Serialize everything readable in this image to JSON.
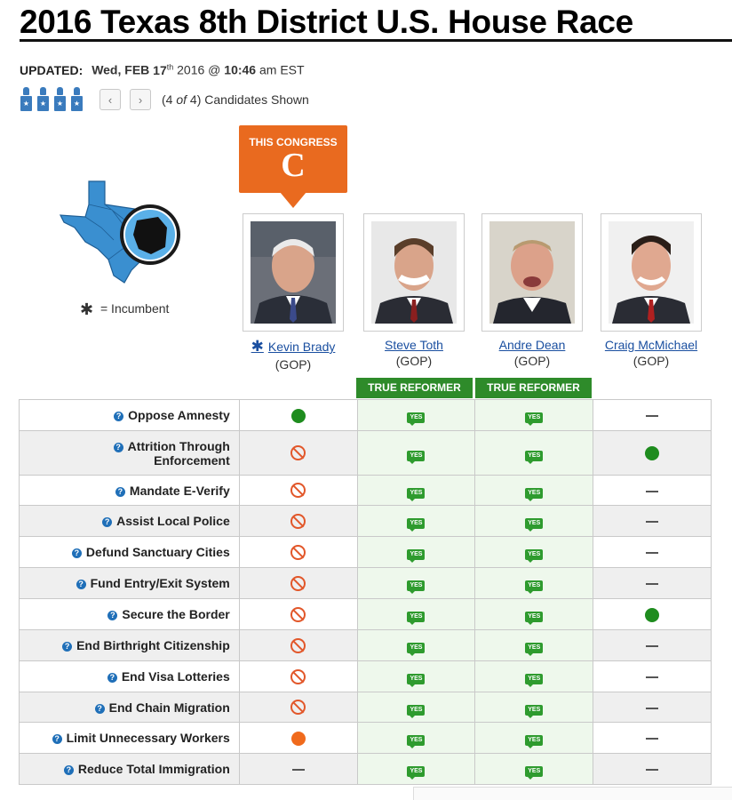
{
  "title": "2016 Texas 8th District U.S. House Race",
  "updated": {
    "label": "UPDATED:",
    "day": "Wed, FEB",
    "date_num": "17",
    "date_sup": "th",
    "year": "2016 @",
    "time": "10:46",
    "ampm": "am EST"
  },
  "nav": {
    "prev": "‹",
    "next": "›",
    "shown_open": "(4",
    "shown_of": "of",
    "shown_close": "4) Candidates Shown"
  },
  "congress": {
    "label": "THIS CONGRESS",
    "grade": "C"
  },
  "legend": {
    "symbol": "✱",
    "text": "= Incumbent"
  },
  "candidates": [
    {
      "name": "Kevin Brady",
      "party": "(GOP)",
      "incumbent": true,
      "badge": ""
    },
    {
      "name": "Steve Toth",
      "party": "(GOP)",
      "incumbent": false,
      "badge": "TRUE REFORMER"
    },
    {
      "name": "Andre Dean",
      "party": "(GOP)",
      "incumbent": false,
      "badge": "TRUE REFORMER"
    },
    {
      "name": "Craig McMichael",
      "party": "(GOP)",
      "incumbent": false,
      "badge": ""
    }
  ],
  "yes_label": "YES",
  "issues": [
    {
      "l1": "Oppose Amnesty",
      "l2": "",
      "v": [
        "green",
        "yes",
        "yes",
        "dash"
      ]
    },
    {
      "l1": "Attrition Through",
      "l2": "Enforcement",
      "v": [
        "no",
        "yes",
        "yes",
        "green"
      ]
    },
    {
      "l1": "Mandate E-Verify",
      "l2": "",
      "v": [
        "no",
        "yes",
        "yes",
        "dash"
      ]
    },
    {
      "l1": "Assist Local Police",
      "l2": "",
      "v": [
        "no",
        "yes",
        "yes",
        "dash"
      ]
    },
    {
      "l1": "Defund Sanctuary Cities",
      "l2": "",
      "v": [
        "no",
        "yes",
        "yes",
        "dash"
      ]
    },
    {
      "l1": "Fund Entry/Exit System",
      "l2": "",
      "v": [
        "no",
        "yes",
        "yes",
        "dash"
      ]
    },
    {
      "l1": "Secure the Border",
      "l2": "",
      "v": [
        "no",
        "yes",
        "yes",
        "green"
      ]
    },
    {
      "l1": "End Birthright Citizenship",
      "l2": "",
      "v": [
        "no",
        "yes",
        "yes",
        "dash"
      ]
    },
    {
      "l1": "End Visa Lotteries",
      "l2": "",
      "v": [
        "no",
        "yes",
        "yes",
        "dash"
      ]
    },
    {
      "l1": "End Chain Migration",
      "l2": "",
      "v": [
        "no",
        "yes",
        "yes",
        "dash"
      ]
    },
    {
      "l1": "Limit Unnecessary Workers",
      "l2": "",
      "v": [
        "orange",
        "yes",
        "yes",
        "dash"
      ]
    },
    {
      "l1": "Reduce Total Immigration",
      "l2": "",
      "v": [
        "dash",
        "yes",
        "yes",
        "dash"
      ]
    }
  ],
  "colors": {
    "accent_orange": "#e96a1f",
    "reformer_green": "#2e8b2a",
    "link_blue": "#1a4fa0",
    "texas_blue": "#3a8fd0"
  }
}
